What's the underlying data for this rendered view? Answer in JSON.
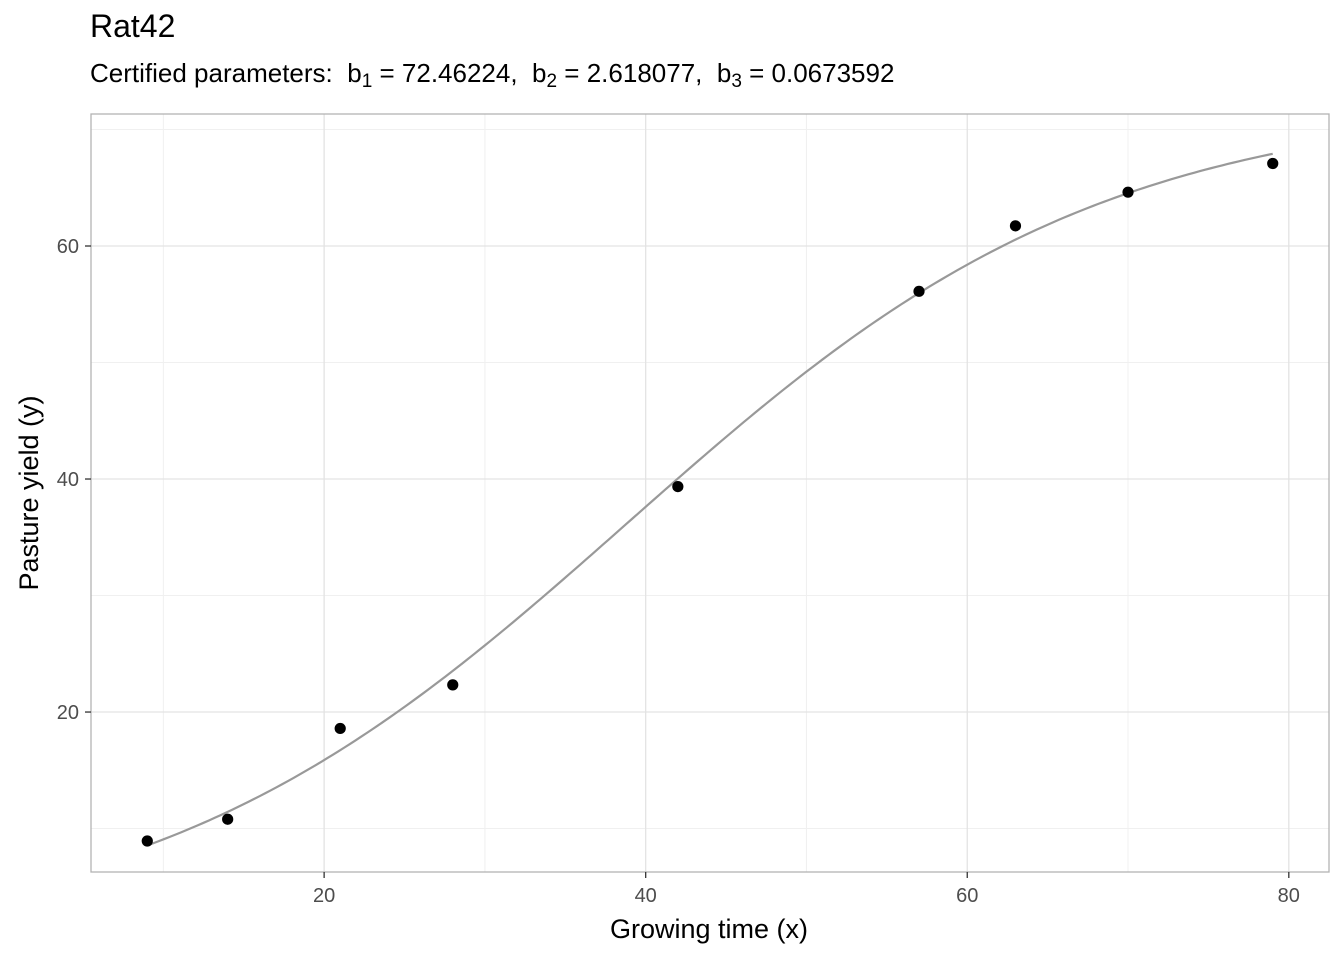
{
  "chart_data": {
    "type": "scatter",
    "title": "Rat42",
    "subtitle": {
      "prefix": "Certified parameters:",
      "params": [
        {
          "sym": "b",
          "sub": "1",
          "value": "72.46224"
        },
        {
          "sym": "b",
          "sub": "2",
          "value": "2.618077"
        },
        {
          "sym": "b",
          "sub": "3",
          "value": "0.0673592"
        }
      ]
    },
    "xlabel": "Growing time (x)",
    "ylabel": "Pasture yield (y)",
    "xlim": [
      5.5,
      82.5
    ],
    "ylim": [
      6.27,
      71.33
    ],
    "x_ticks": [
      20,
      40,
      60,
      80
    ],
    "y_ticks": [
      20,
      40,
      60
    ],
    "x_tick_labels": [
      "20",
      "40",
      "60",
      "80"
    ],
    "y_tick_labels": [
      "20",
      "40",
      "60"
    ],
    "grid": true,
    "series": [
      {
        "type": "scatter",
        "color": "#000000",
        "x": [
          9,
          14,
          21,
          28,
          42,
          57,
          63,
          70,
          79
        ],
        "y": [
          8.93,
          10.8,
          18.59,
          22.33,
          39.35,
          56.11,
          61.73,
          64.62,
          67.08
        ]
      },
      {
        "type": "line",
        "color": "#999999",
        "model": "b1 / (1 + exp(b2 - b3 * x))",
        "coefficients": {
          "b1": 72.46224,
          "b2": 2.618077,
          "b3": 0.0673592
        },
        "x_range": [
          9,
          79
        ]
      }
    ]
  }
}
